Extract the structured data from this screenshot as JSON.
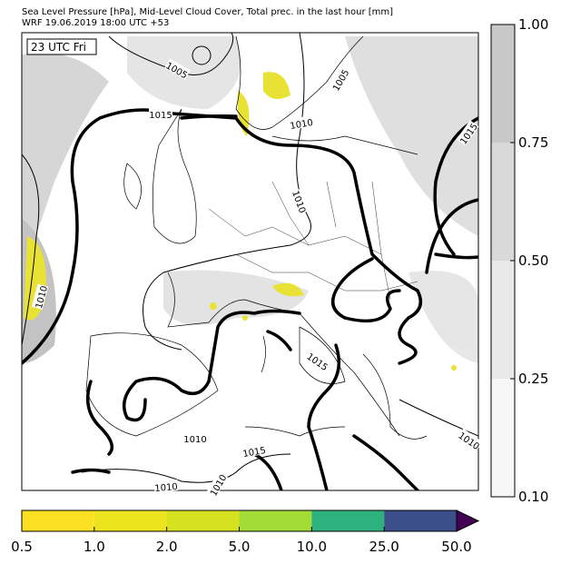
{
  "header": {
    "line1": "Sea Level Pressure [hPa], Mid-Level Cloud Cover, Total prec. in the last hour [mm]",
    "line2": "WRF 19.06.2019 18:00 UTC +53"
  },
  "time_label": "23 UTC Fri",
  "contour_labels": [
    "1005",
    "1005",
    "1015",
    "1010",
    "1015",
    "1010",
    "1010",
    "1015",
    "1010",
    "1015",
    "1010",
    "1010",
    "1010"
  ],
  "cloud_colorbar": {
    "colors": [
      "#f7f7f7",
      "#e9e9e9",
      "#d9d9d9",
      "#c8c8c8"
    ],
    "ticks": [
      {
        "value": 0.1,
        "label": "0.10"
      },
      0.25,
      {
        "value": 0.5,
        "label": "0.50"
      },
      0.75,
      {
        "value": 1,
        "label": "1.00"
      }
    ]
  },
  "precip_colorbar": {
    "colors": [
      "#fbe024",
      "#ece41e",
      "#d6e21f",
      "#a4db36",
      "#2db27d",
      "#3d4f8a"
    ],
    "extend_color": "#440154",
    "ticks": [
      0.5,
      {
        "value": 1,
        "label": "1.0"
      },
      {
        "value": 2,
        "label": "2.0"
      },
      {
        "value": 5,
        "label": "5.0"
      },
      {
        "value": 10,
        "label": "10.0"
      },
      {
        "value": 25,
        "label": "25.0"
      },
      {
        "value": 50,
        "label": "50.0"
      }
    ]
  }
}
